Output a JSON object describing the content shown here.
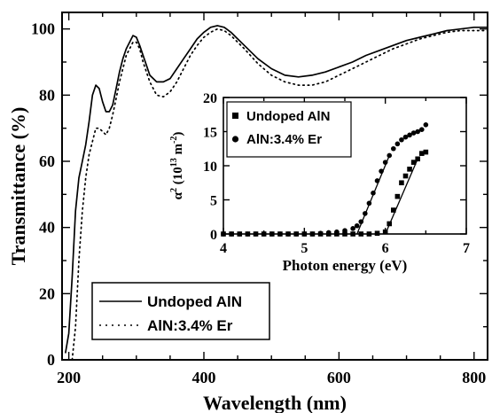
{
  "chart_data": [
    {
      "type": "line",
      "xlabel": "Wavelength (nm)",
      "ylabel": "Transmittance (%)",
      "xlim": [
        190,
        820
      ],
      "ylim": [
        0,
        105
      ],
      "xticks": [
        200,
        400,
        600,
        800
      ],
      "yticks": [
        0,
        20,
        40,
        60,
        80,
        100
      ],
      "legend": "bottom-left",
      "series": [
        {
          "name": "Undoped AlN",
          "style": "solid",
          "x": [
            195,
            200,
            205,
            210,
            215,
            220,
            225,
            230,
            235,
            240,
            245,
            250,
            255,
            260,
            265,
            270,
            275,
            280,
            285,
            290,
            295,
            300,
            305,
            310,
            315,
            320,
            330,
            340,
            350,
            360,
            370,
            380,
            390,
            400,
            410,
            420,
            430,
            440,
            450,
            460,
            480,
            500,
            520,
            540,
            560,
            580,
            600,
            620,
            640,
            660,
            680,
            700,
            720,
            740,
            760,
            780,
            800,
            810,
            820
          ],
          "y": [
            2,
            8,
            25,
            45,
            55,
            60,
            65,
            72,
            80,
            83,
            82,
            78,
            75,
            75,
            77,
            82,
            87,
            91,
            94,
            96,
            98,
            97.5,
            95,
            92,
            89,
            86,
            84,
            84,
            85,
            88,
            91,
            94,
            97,
            99,
            100.5,
            101,
            100.5,
            99,
            97,
            95,
            91,
            88,
            86,
            85.5,
            86,
            87,
            88.5,
            90,
            92,
            93.5,
            95,
            96.5,
            97.5,
            98.5,
            99.5,
            100,
            100.5,
            100.5,
            100.5
          ]
        },
        {
          "name": "AlN:3.4% Er",
          "style": "dotted",
          "x": [
            205,
            210,
            215,
            220,
            225,
            230,
            235,
            240,
            245,
            250,
            255,
            260,
            265,
            270,
            275,
            280,
            285,
            290,
            295,
            300,
            305,
            310,
            320,
            330,
            340,
            350,
            360,
            370,
            380,
            390,
            400,
            410,
            420,
            430,
            440,
            460,
            480,
            500,
            520,
            540,
            560,
            580,
            600,
            620,
            640,
            660,
            680,
            700,
            720,
            740,
            760,
            780,
            800,
            820
          ],
          "y": [
            0,
            10,
            30,
            45,
            55,
            62,
            66,
            70,
            70,
            69,
            68,
            70,
            74,
            79,
            84,
            88,
            92,
            94,
            96,
            96,
            94,
            90,
            84,
            80,
            79.5,
            81,
            84,
            88,
            92,
            95,
            97.5,
            99,
            100,
            99.5,
            98,
            94,
            89.5,
            86,
            84,
            83,
            83,
            84,
            86,
            88,
            90,
            92,
            94,
            95.5,
            97,
            98,
            99,
            99.5,
            99.5,
            99.5
          ]
        }
      ]
    },
    {
      "type": "scatter",
      "xlabel": "Photon energy (eV)",
      "ylabel": "α² (10¹³ m⁻²)",
      "xlim": [
        4,
        7
      ],
      "ylim": [
        0,
        20
      ],
      "xticks": [
        4,
        5,
        6,
        7
      ],
      "yticks": [
        0,
        5,
        10,
        15,
        20
      ],
      "legend": "top-left",
      "series": [
        {
          "name": "Undoped AlN",
          "marker": "square",
          "x": [
            4.0,
            4.1,
            4.2,
            4.3,
            4.4,
            4.5,
            4.6,
            4.7,
            4.8,
            4.9,
            5.0,
            5.1,
            5.2,
            5.3,
            5.4,
            5.5,
            5.6,
            5.7,
            5.8,
            5.9,
            6.0,
            6.05,
            6.1,
            6.15,
            6.2,
            6.25,
            6.3,
            6.35,
            6.4,
            6.45,
            6.5
          ],
          "y": [
            0,
            0,
            0,
            0,
            0,
            0,
            0,
            0,
            0,
            0,
            0,
            0,
            0,
            0,
            0,
            0,
            0,
            0,
            0,
            0.1,
            0.3,
            1.5,
            3.5,
            5.5,
            7.5,
            8.5,
            9.5,
            10.5,
            11,
            11.8,
            12
          ],
          "fit_line": {
            "x": [
              6.0,
              6.4
            ],
            "y": [
              0,
              11
            ]
          }
        },
        {
          "name": "AlN:3.4% Er",
          "marker": "circle",
          "x": [
            4.0,
            4.1,
            4.2,
            4.3,
            4.4,
            4.5,
            4.6,
            4.7,
            4.8,
            4.9,
            5.0,
            5.1,
            5.2,
            5.3,
            5.4,
            5.5,
            5.6,
            5.65,
            5.7,
            5.75,
            5.8,
            5.85,
            5.9,
            5.95,
            6.0,
            6.05,
            6.1,
            6.15,
            6.2,
            6.25,
            6.3,
            6.35,
            6.4,
            6.45,
            6.5
          ],
          "y": [
            0,
            0,
            0,
            0,
            0,
            0,
            0,
            0,
            0,
            0,
            0,
            0,
            0.1,
            0.2,
            0.3,
            0.5,
            0.8,
            1.2,
            1.8,
            3,
            4.5,
            6,
            7.8,
            9.2,
            10.5,
            11.5,
            12.5,
            13.2,
            13.8,
            14.2,
            14.5,
            14.8,
            15,
            15.3,
            16
          ],
          "fit_line": {
            "x": [
              5.65,
              6.05
            ],
            "y": [
              0,
              11.5
            ]
          }
        }
      ]
    }
  ],
  "legend": {
    "main": [
      {
        "label": "Undoped AlN"
      },
      {
        "label": "AlN:3.4% Er"
      }
    ],
    "inset": [
      {
        "label": "Undoped AlN"
      },
      {
        "label": "AlN:3.4% Er"
      }
    ]
  },
  "inset_ylabel": {
    "base": "α",
    "sup1": "2",
    "open": " (10",
    "sup2": "13",
    "unit": " m",
    "sup3": "-2",
    "close": ")"
  }
}
